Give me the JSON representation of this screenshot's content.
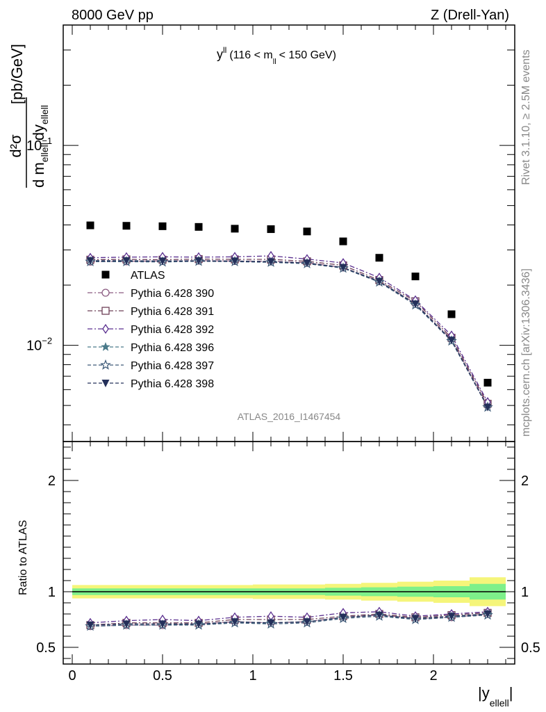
{
  "header": {
    "left": "8000 GeV pp",
    "right": "Z (Drell-Yan)"
  },
  "side_labels": {
    "rivet": "Rivet 3.1.10, ≥ 2.5M events",
    "mcplots": "mcplots.cern.ch [arXiv:1306.3436]"
  },
  "analysis_id": "ATLAS_2016_I1467454",
  "plot_title": {
    "y": "y",
    "y_sup": "ll",
    "range_open": "(116 < m",
    "m_sub": "ll",
    "range_close": "< 150 GeV)"
  },
  "ylabel_main": {
    "num": "d²σ",
    "den_d": "d m",
    "den_sub": "ellell",
    "den_dy": "dy",
    "den_sub2": "ellell",
    "unit": "[pb/GeV]"
  },
  "ylabel_ratio": "Ratio to ATLAS",
  "xlabel": {
    "base": "|y",
    "sub": "ellell",
    "close": "|"
  },
  "colors": {
    "data": "#000000",
    "p390": "#8a5a80",
    "p391": "#6e4058",
    "p392": "#5a2f8f",
    "p396": "#4a7a8a",
    "p397": "#3d5a78",
    "p398": "#24305a",
    "band_inner": "#7ef08a",
    "band_outer": "#f5f57a"
  },
  "chart_data": {
    "type": "scatter",
    "x": [
      0.1,
      0.3,
      0.5,
      0.7,
      0.9,
      1.1,
      1.3,
      1.5,
      1.7,
      1.9,
      2.1,
      2.3
    ],
    "xlim": [
      -0.05,
      2.45
    ],
    "main": {
      "yscale": "log",
      "ylim": [
        0.0033,
        0.4
      ],
      "yticks": [
        {
          "value": 0.1,
          "base": "10",
          "exp": "−1"
        },
        {
          "value": 0.01,
          "base": "10",
          "exp": "−2"
        }
      ]
    },
    "ratio": {
      "ylim": [
        0.35,
        2.35
      ],
      "yticks": [
        {
          "value": 0.5,
          "label": "0.5"
        },
        {
          "value": 1,
          "label": "1"
        },
        {
          "value": 2,
          "label": "2"
        }
      ]
    },
    "xticks": [
      {
        "value": 0,
        "label": "0"
      },
      {
        "value": 0.5,
        "label": "0.5"
      },
      {
        "value": 1,
        "label": "1"
      },
      {
        "value": 1.5,
        "label": "1.5"
      },
      {
        "value": 2,
        "label": "2"
      }
    ],
    "data_series": {
      "name": "ATLAS",
      "values": [
        0.0398,
        0.0396,
        0.0394,
        0.0391,
        0.0383,
        0.0381,
        0.0371,
        0.0331,
        0.0274,
        0.0221,
        0.0143,
        0.0065
      ]
    },
    "band": {
      "inner_halfwidth": [
        0.03,
        0.03,
        0.03,
        0.03,
        0.03,
        0.03,
        0.03,
        0.035,
        0.04,
        0.045,
        0.05,
        0.07
      ],
      "outer_halfwidth": [
        0.06,
        0.06,
        0.06,
        0.06,
        0.06,
        0.065,
        0.065,
        0.07,
        0.08,
        0.09,
        0.1,
        0.13
      ]
    },
    "series": [
      {
        "name": "Pythia 6.428 390",
        "color_key": "p390",
        "marker": "circle-open",
        "dash": "dashdot",
        "values": [
          0.0262,
          0.0263,
          0.0264,
          0.0265,
          0.0264,
          0.0263,
          0.0259,
          0.0245,
          0.0209,
          0.0162,
          0.0107,
          0.005
        ],
        "ratio": [
          0.69,
          0.7,
          0.7,
          0.71,
          0.73,
          0.72,
          0.73,
          0.77,
          0.79,
          0.76,
          0.77,
          0.8
        ]
      },
      {
        "name": "Pythia 6.428 391",
        "color_key": "p391",
        "marker": "square-open",
        "dash": "dashdot",
        "values": [
          0.0268,
          0.0269,
          0.0268,
          0.027,
          0.0269,
          0.0269,
          0.0263,
          0.0251,
          0.0212,
          0.0166,
          0.0109,
          0.0051
        ],
        "ratio": [
          0.7,
          0.72,
          0.72,
          0.72,
          0.75,
          0.75,
          0.75,
          0.78,
          0.8,
          0.77,
          0.79,
          0.81
        ]
      },
      {
        "name": "Pythia 6.428 392",
        "color_key": "p392",
        "marker": "diamond-open",
        "dash": "dashdot",
        "values": [
          0.0274,
          0.0276,
          0.0277,
          0.0276,
          0.0277,
          0.028,
          0.027,
          0.0258,
          0.0218,
          0.0168,
          0.0112,
          0.0052
        ],
        "ratio": [
          0.72,
          0.74,
          0.75,
          0.74,
          0.77,
          0.78,
          0.77,
          0.81,
          0.82,
          0.78,
          0.8,
          0.82
        ]
      },
      {
        "name": "Pythia 6.428 396",
        "color_key": "p396",
        "marker": "star-filled",
        "dash": "dashed",
        "values": [
          0.0263,
          0.0263,
          0.0262,
          0.0264,
          0.0263,
          0.0261,
          0.0257,
          0.0244,
          0.0208,
          0.016,
          0.0106,
          0.0049
        ],
        "ratio": [
          0.69,
          0.7,
          0.7,
          0.71,
          0.72,
          0.72,
          0.73,
          0.77,
          0.79,
          0.75,
          0.77,
          0.8
        ]
      },
      {
        "name": "Pythia 6.428 397",
        "color_key": "p397",
        "marker": "star-open",
        "dash": "dashed",
        "values": [
          0.0262,
          0.0262,
          0.0261,
          0.0263,
          0.0262,
          0.026,
          0.0256,
          0.0243,
          0.0207,
          0.0159,
          0.0105,
          0.0049
        ],
        "ratio": [
          0.69,
          0.7,
          0.7,
          0.7,
          0.72,
          0.71,
          0.72,
          0.76,
          0.78,
          0.75,
          0.77,
          0.79
        ]
      },
      {
        "name": "Pythia 6.428 398",
        "color_key": "p398",
        "marker": "triangle-down-filled",
        "dash": "dashed",
        "values": [
          0.0265,
          0.0265,
          0.0264,
          0.0265,
          0.0264,
          0.0262,
          0.0258,
          0.0245,
          0.0209,
          0.0161,
          0.0106,
          0.0049
        ],
        "ratio": [
          0.7,
          0.71,
          0.71,
          0.71,
          0.73,
          0.72,
          0.73,
          0.77,
          0.79,
          0.76,
          0.78,
          0.8
        ]
      }
    ]
  }
}
